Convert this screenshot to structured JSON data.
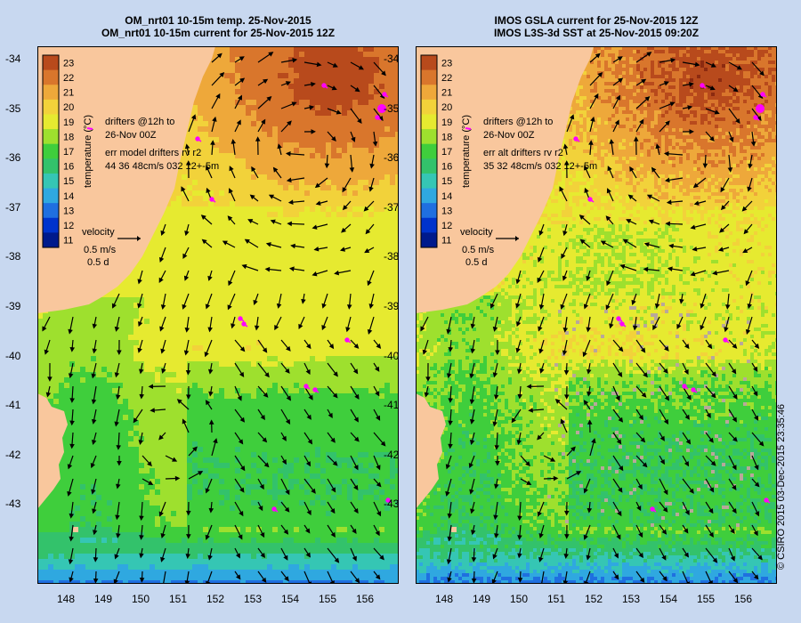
{
  "panels": [
    {
      "id": "left",
      "title_line1": "OM_nrt01 10-15m temp. 25-Nov-2015",
      "title_line2": "OM_nrt01 10-15m current for 25-Nov-2015 12Z",
      "legend_drifters": "drifters @12h to",
      "legend_drifters_2": "26-Nov 00Z",
      "legend_err": "err model drifters rv r2",
      "legend_err_values": "44 36 48cm/s 032 12+-5m",
      "velocity_label": "velocity",
      "velocity_scale": "0.5 m/s",
      "velocity_time": "0.5 d",
      "texture": "model"
    },
    {
      "id": "right",
      "title_line1": "IMOS GSLA current for 25-Nov-2015 12Z",
      "title_line2": "IMOS L3S-3d SST at 25-Nov-2015 09:20Z",
      "legend_drifters": "drifters @12h to",
      "legend_drifters_2": "26-Nov 00Z",
      "legend_err": "err alt drifters rv r2",
      "legend_err_values": "35 32 48cm/s 032 12+-5m",
      "velocity_label": "velocity",
      "velocity_scale": "0.5 m/s",
      "velocity_time": "0.5 d",
      "texture": "satellite"
    }
  ],
  "colorbar": {
    "label": "temperature (°C)",
    "ticks": [
      "23",
      "22",
      "21",
      "20",
      "19",
      "18",
      "17",
      "16",
      "15",
      "14",
      "13",
      "12",
      "11"
    ]
  },
  "lat_ticks": [
    "-34",
    "-35",
    "-36",
    "-37",
    "-38",
    "-39",
    "-40",
    "-41",
    "-42",
    "-43"
  ],
  "lon_ticks": [
    "148",
    "149",
    "150",
    "151",
    "152",
    "153",
    "154",
    "155",
    "156"
  ],
  "credit": "© CSIRO 2015   03-Dec-2015 23:35:46",
  "colors": {
    "background": "#c8d8f0",
    "land": "#f9c79d",
    "warm": "#c0501e",
    "mid": "#f0e24a",
    "cool": "#33c26b",
    "cold": "#1f6fe0",
    "drifter": "#ff00ff"
  }
}
